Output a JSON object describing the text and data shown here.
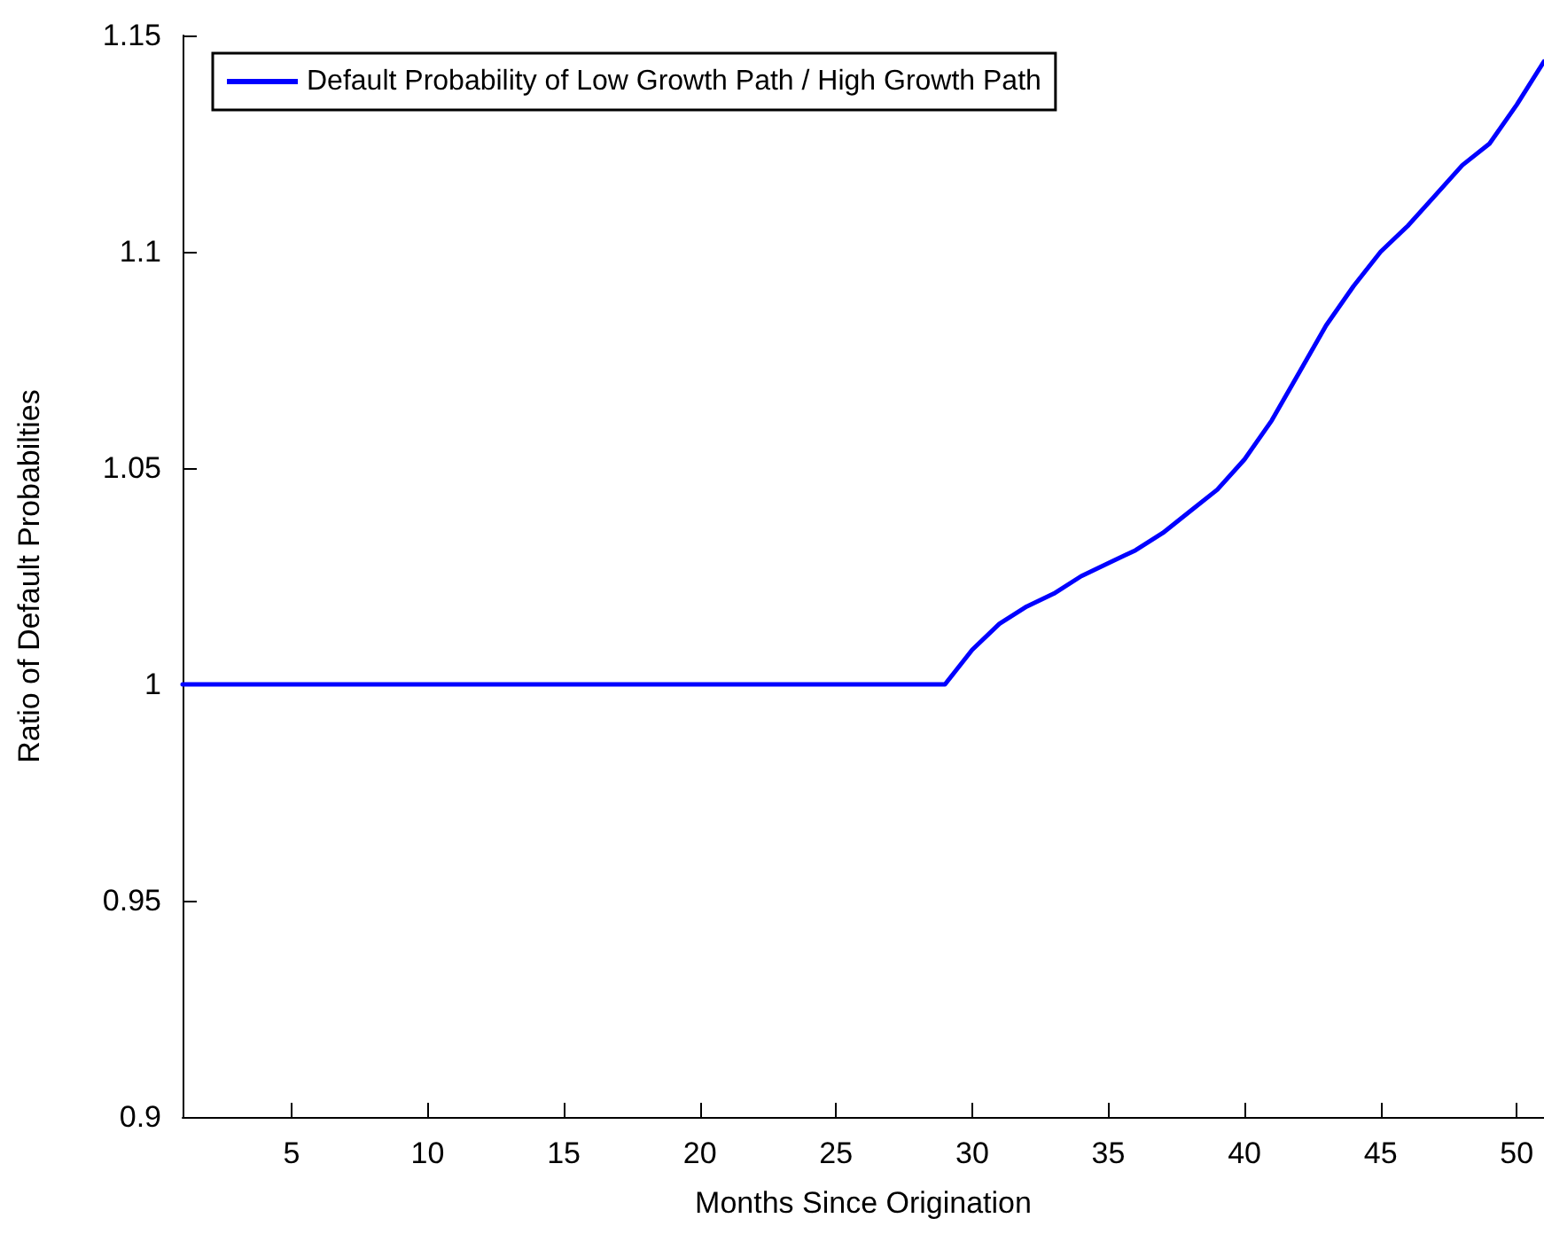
{
  "chart_data": {
    "type": "line",
    "xlabel": "Months Since Origination",
    "ylabel": "Ratio of Default Probabilties",
    "series": [
      {
        "name": "Default Probability of Low Growth Path / High Growth Path",
        "color": "#0000ff",
        "x": [
          1,
          29,
          29.5,
          30,
          31,
          32,
          33,
          34,
          35,
          36,
          37,
          38,
          39,
          40,
          41,
          42,
          43,
          44,
          45,
          46,
          47,
          48,
          49,
          50,
          51
        ],
        "values": [
          1,
          1,
          1.004,
          1.008,
          1.014,
          1.018,
          1.021,
          1.025,
          1.028,
          1.031,
          1.035,
          1.04,
          1.045,
          1.052,
          1.061,
          1.072,
          1.083,
          1.092,
          1.1,
          1.106,
          1.113,
          1.12,
          1.125,
          1.134,
          1.144
        ]
      }
    ],
    "xlim": [
      1,
      51
    ],
    "xticks": [
      5,
      10,
      15,
      20,
      25,
      30,
      35,
      40,
      45,
      50
    ],
    "ylim": [
      0.9,
      1.15
    ],
    "yticks": [
      0.9,
      0.95,
      1,
      1.05,
      1.1,
      1.15
    ],
    "grid": false,
    "legend": "top left",
    "marker": "none",
    "line_style": "solid"
  }
}
